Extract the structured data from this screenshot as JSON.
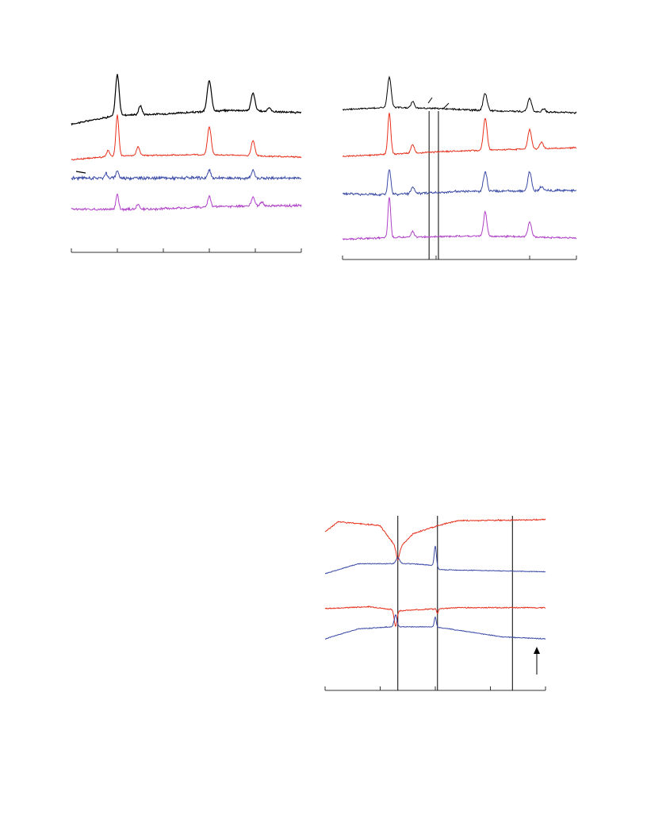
{
  "colors": {
    "black": "#000000",
    "red": "#e8301c",
    "blue": "#3a4aa6",
    "purple": "#b040c8",
    "axis": "#333333"
  },
  "chart_data": [
    {
      "type": "line",
      "title": "",
      "xlabel": "",
      "ylabel": "",
      "xlim": [
        0,
        100
      ],
      "ticks": [
        0,
        20,
        40,
        60,
        80,
        100
      ],
      "grid": false,
      "legend": "none",
      "series": [
        {
          "color": "black",
          "offset": 0.0,
          "peaks": [
            [
              20,
              1.6,
              1.1
            ],
            [
              30,
              0.35,
              1.0
            ],
            [
              60,
              1.2,
              1.3
            ],
            [
              79,
              0.7,
              1.2
            ],
            [
              86,
              0.15,
              1.0
            ]
          ],
          "baseline": [
            [
              0,
              -0.2
            ],
            [
              20,
              0.15
            ],
            [
              40,
              0.2
            ],
            [
              70,
              0.35
            ],
            [
              100,
              0.25
            ]
          ],
          "noise": 0.05
        },
        {
          "color": "red",
          "offset": 1.4,
          "peaks": [
            [
              16,
              0.25,
              0.9
            ],
            [
              20,
              1.6,
              0.9
            ],
            [
              29,
              0.35,
              1.0
            ],
            [
              60,
              1.1,
              1.1
            ],
            [
              79,
              0.6,
              1.1
            ]
          ],
          "baseline": [
            [
              0,
              -0.1
            ],
            [
              20,
              0.05
            ],
            [
              60,
              0.1
            ],
            [
              100,
              0.0
            ]
          ],
          "noise": 0.04
        },
        {
          "color": "blue",
          "offset": 2.3,
          "peaks": [
            [
              15,
              0.2,
              0.8
            ],
            [
              20,
              0.3,
              0.8
            ],
            [
              60,
              0.3,
              0.9
            ],
            [
              79,
              0.3,
              0.9
            ]
          ],
          "baseline": [
            [
              0,
              0.05
            ],
            [
              30,
              0.05
            ],
            [
              60,
              0.05
            ],
            [
              100,
              0.05
            ]
          ],
          "noise": 0.09
        },
        {
          "color": "purple",
          "offset": 2.9,
          "peaks": [
            [
              20,
              0.6,
              0.8
            ],
            [
              29,
              0.2,
              0.9
            ],
            [
              60,
              0.4,
              0.9
            ],
            [
              79,
              0.35,
              1.1
            ],
            [
              83,
              0.15,
              1.0
            ]
          ],
          "baseline": [
            [
              0,
              -0.05
            ],
            [
              35,
              -0.05
            ],
            [
              60,
              0.05
            ],
            [
              100,
              0.1
            ]
          ],
          "noise": 0.07
        }
      ]
    },
    {
      "type": "line",
      "title": "",
      "xlabel": "",
      "ylabel": "",
      "xlim": [
        0,
        100
      ],
      "ticks": [
        0,
        40,
        80,
        100
      ],
      "vlines": [
        37,
        41
      ],
      "grid": false,
      "legend": "none",
      "series": [
        {
          "color": "black",
          "offset": 0.0,
          "peaks": [
            [
              20,
              1.4,
              1.1
            ],
            [
              30,
              0.3,
              1.0
            ],
            [
              61,
              0.8,
              1.2
            ],
            [
              80,
              0.6,
              1.2
            ],
            [
              86,
              0.15,
              1.0
            ]
          ],
          "baseline": [
            [
              0,
              0.0
            ],
            [
              20,
              0.1
            ],
            [
              40,
              0.05
            ],
            [
              60,
              -0.05
            ],
            [
              100,
              -0.15
            ]
          ],
          "noise": 0.06
        },
        {
          "color": "red",
          "offset": 1.7,
          "peaks": [
            [
              20,
              1.9,
              0.9
            ],
            [
              30,
              0.4,
              1.0
            ],
            [
              61,
              1.5,
              1.1
            ],
            [
              80,
              0.9,
              1.1
            ],
            [
              85,
              0.3,
              1.0
            ]
          ],
          "baseline": [
            [
              0,
              0.0
            ],
            [
              20,
              0.1
            ],
            [
              50,
              0.25
            ],
            [
              100,
              0.4
            ]
          ],
          "noise": 0.05
        },
        {
          "color": "blue",
          "offset": 3.2,
          "peaks": [
            [
              20,
              1.2,
              0.9
            ],
            [
              30,
              0.3,
              1.0
            ],
            [
              61,
              0.9,
              1.1
            ],
            [
              80,
              0.9,
              1.1
            ],
            [
              85,
              0.2,
              1.0
            ]
          ],
          "baseline": [
            [
              0,
              0.0
            ],
            [
              20,
              -0.05
            ],
            [
              50,
              0.1
            ],
            [
              100,
              0.15
            ]
          ],
          "noise": 0.08
        },
        {
          "color": "purple",
          "offset": 4.5,
          "peaks": [
            [
              20,
              1.9,
              0.8
            ],
            [
              30,
              0.25,
              0.9
            ],
            [
              61,
              1.1,
              1.0
            ],
            [
              80,
              0.7,
              1.1
            ]
          ],
          "baseline": [
            [
              0,
              -0.05
            ],
            [
              30,
              0.05
            ],
            [
              60,
              0.1
            ],
            [
              100,
              0.0
            ]
          ],
          "noise": 0.06
        }
      ]
    },
    {
      "type": "line",
      "title": "",
      "xlabel": "",
      "ylabel": "",
      "xlim": [
        0,
        100
      ],
      "ticks": [
        0,
        25,
        50,
        75,
        100
      ],
      "vlines": [
        33,
        51,
        85
      ],
      "grid": false,
      "legend": "none",
      "arrow": "up",
      "series": [
        {
          "color": "red",
          "offset": 0.0,
          "baseline": [
            [
              0,
              0.0
            ],
            [
              6,
              0.5
            ],
            [
              25,
              0.3
            ],
            [
              33,
              -0.9
            ],
            [
              40,
              -0.1
            ],
            [
              51,
              0.3
            ],
            [
              60,
              0.55
            ],
            [
              100,
              0.6
            ]
          ],
          "peaks": [
            [
              33,
              -0.5,
              1.0
            ]
          ],
          "noise": 0.05
        },
        {
          "color": "blue",
          "offset": 1.2,
          "baseline": [
            [
              0,
              0.0
            ],
            [
              15,
              0.5
            ],
            [
              30,
              0.5
            ],
            [
              40,
              0.5
            ],
            [
              50,
              0.4
            ],
            [
              52,
              0.2
            ],
            [
              100,
              0.1
            ]
          ],
          "peaks": [
            [
              33,
              0.3,
              1.2
            ],
            [
              50,
              1.0,
              0.7
            ]
          ],
          "noise": 0.03
        },
        {
          "color": "red",
          "offset": 2.6,
          "baseline": [
            [
              0,
              0.0
            ],
            [
              20,
              0.1
            ],
            [
              34,
              -0.1
            ],
            [
              60,
              0.05
            ],
            [
              100,
              0.05
            ]
          ],
          "peaks": [
            [
              32,
              -0.8,
              0.9
            ],
            [
              51,
              -0.25,
              0.5
            ]
          ],
          "noise": 0.04
        },
        {
          "color": "blue",
          "offset": 3.8,
          "baseline": [
            [
              0,
              0.0
            ],
            [
              15,
              0.5
            ],
            [
              30,
              0.6
            ],
            [
              50,
              0.6
            ],
            [
              80,
              0.1
            ],
            [
              100,
              0.0
            ]
          ],
          "peaks": [
            [
              32,
              0.6,
              0.9
            ],
            [
              50,
              0.5,
              0.6
            ]
          ],
          "noise": 0.03
        }
      ]
    }
  ]
}
